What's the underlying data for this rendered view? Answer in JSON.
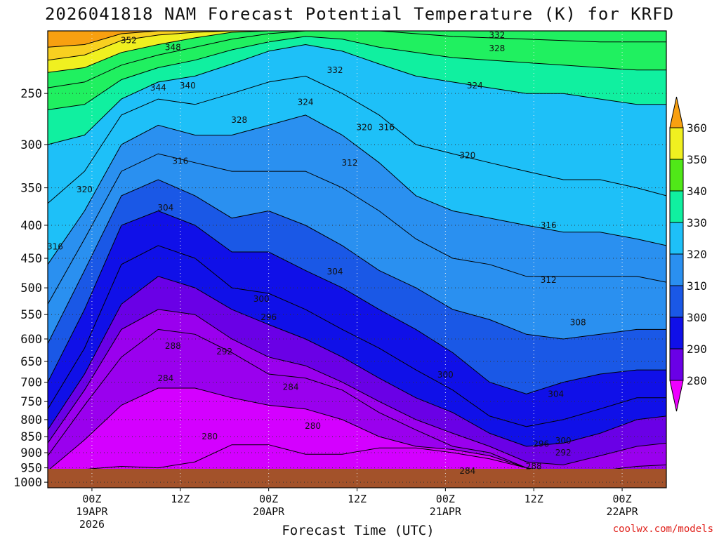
{
  "title": "2026041818 NAM Forecast Potential Temperature (K) for KRFD",
  "xlabel": "Forecast Time (UTC)",
  "credit": "coolwx.com/models",
  "chart_data": {
    "type": "contour",
    "variable": "Potential Temperature (K)",
    "y_axis": {
      "quantity": "pressure (hPa)",
      "scale": "log, inverted",
      "range": [
        200,
        1020
      ],
      "ticks": [
        250,
        300,
        350,
        400,
        450,
        500,
        550,
        600,
        650,
        700,
        750,
        800,
        850,
        900,
        950,
        1000
      ]
    },
    "x_axis": {
      "range_hours": [
        -6,
        78
      ],
      "ticks": [
        {
          "hour": 0,
          "lines": [
            "00Z",
            "19APR",
            "2026"
          ]
        },
        {
          "hour": 12,
          "lines": [
            "12Z"
          ]
        },
        {
          "hour": 24,
          "lines": [
            "00Z",
            "20APR"
          ]
        },
        {
          "hour": 36,
          "lines": [
            "12Z"
          ]
        },
        {
          "hour": 48,
          "lines": [
            "00Z",
            "21APR"
          ]
        },
        {
          "hour": 60,
          "lines": [
            "12Z"
          ]
        },
        {
          "hour": 72,
          "lines": [
            "00Z",
            "22APR"
          ]
        }
      ]
    },
    "grid": "dotted",
    "colorbar": {
      "levels": [
        280,
        290,
        300,
        310,
        320,
        330,
        340,
        350,
        360
      ],
      "colors": [
        "#d400ff",
        "#9a00ee",
        "#6a00e6",
        "#1010e8",
        "#1a58e6",
        "#2a90f0",
        "#1ec0f8",
        "#10f0a0",
        "#20f060",
        "#50e818",
        "#f0f020",
        "#f8d020",
        "#f8a010"
      ]
    },
    "isentropes": [
      {
        "theta": 280,
        "p": [
          1000,
          955,
          945,
          950,
          930,
          875,
          875,
          905,
          905,
          885,
          885,
          900,
          920,
          950,
          985,
          1000,
          1000,
          1000
        ]
      },
      {
        "theta": 284,
        "p": [
          960,
          860,
          760,
          715,
          715,
          740,
          760,
          770,
          800,
          850,
          880,
          890,
          910,
          950,
          975,
          990,
          985,
          975
        ]
      },
      {
        "theta": 288,
        "p": [
          910,
          760,
          640,
          580,
          590,
          630,
          680,
          690,
          720,
          780,
          830,
          880,
          900,
          950,
          975,
          960,
          945,
          940
        ]
      },
      {
        "theta": 292,
        "p": [
          870,
          720,
          580,
          540,
          550,
          600,
          640,
          660,
          700,
          750,
          800,
          840,
          880,
          930,
          940,
          910,
          880,
          870
        ]
      },
      {
        "theta": 296,
        "p": [
          830,
          680,
          530,
          480,
          500,
          540,
          570,
          600,
          640,
          690,
          740,
          780,
          840,
          880,
          870,
          840,
          800,
          790
        ]
      },
      {
        "theta": 300,
        "p": [
          770,
          620,
          460,
          430,
          450,
          500,
          510,
          540,
          580,
          620,
          670,
          720,
          790,
          820,
          800,
          770,
          740,
          740
        ]
      },
      {
        "theta": 304,
        "p": [
          700,
          540,
          400,
          380,
          400,
          440,
          440,
          470,
          500,
          540,
          580,
          630,
          700,
          730,
          700,
          680,
          670,
          670
        ]
      },
      {
        "theta": 308,
        "p": [
          610,
          470,
          360,
          340,
          360,
          390,
          380,
          400,
          430,
          470,
          500,
          540,
          560,
          590,
          600,
          590,
          580,
          580
        ]
      },
      {
        "theta": 312,
        "p": [
          530,
          420,
          330,
          310,
          320,
          330,
          330,
          330,
          350,
          380,
          420,
          450,
          460,
          480,
          480,
          480,
          480,
          490
        ]
      },
      {
        "theta": 316,
        "p": [
          460,
          380,
          300,
          280,
          290,
          290,
          280,
          270,
          290,
          320,
          360,
          380,
          390,
          400,
          410,
          410,
          420,
          430
        ]
      },
      {
        "theta": 320,
        "p": [
          370,
          330,
          270,
          255,
          260,
          250,
          240,
          235,
          250,
          270,
          300,
          310,
          320,
          330,
          340,
          340,
          350,
          360
        ]
      },
      {
        "theta": 324,
        "p": [
          300,
          290,
          255,
          240,
          235,
          225,
          215,
          210,
          215,
          225,
          235,
          240,
          245,
          250,
          250,
          255,
          260,
          260
        ]
      },
      {
        "theta": 328,
        "p": [
          265,
          260,
          238,
          228,
          222,
          214,
          208,
          204,
          206,
          212,
          216,
          220,
          222,
          224,
          226,
          228,
          230,
          230
        ]
      },
      {
        "theta": 332,
        "p": [
          245,
          240,
          226,
          218,
          212,
          206,
          202,
          200,
          200,
          200,
          202,
          204,
          205,
          206,
          207,
          208,
          208,
          208
        ]
      },
      {
        "theta": 340,
        "p": [
          232,
          228,
          216,
          210,
          205,
          201,
          200,
          200,
          200,
          200,
          200,
          200,
          200,
          200,
          200,
          200,
          200,
          200
        ]
      },
      {
        "theta": 348,
        "p": [
          222,
          218,
          207,
          203,
          201,
          200,
          200,
          200,
          200,
          200,
          200,
          200,
          200,
          200,
          200,
          200,
          200,
          200
        ]
      },
      {
        "theta": 352,
        "p": [
          212,
          210,
          202,
          200,
          200,
          200,
          200,
          200,
          200,
          200,
          200,
          200,
          200,
          200,
          200,
          200,
          200,
          200
        ]
      }
    ],
    "isentrope_hours": [
      -6,
      -1,
      4,
      9,
      14,
      19,
      24,
      29,
      34,
      39,
      44,
      49,
      54,
      59,
      64,
      69,
      74,
      78
    ],
    "contour_labels": [
      {
        "text": "352",
        "hour": 5,
        "p": 207
      },
      {
        "text": "348",
        "hour": 11,
        "p": 212
      },
      {
        "text": "344",
        "hour": 9,
        "p": 245
      },
      {
        "text": "340",
        "hour": 13,
        "p": 243
      },
      {
        "text": "332",
        "hour": 33,
        "p": 230
      },
      {
        "text": "332",
        "hour": 55,
        "p": 203
      },
      {
        "text": "328",
        "hour": 55,
        "p": 213
      },
      {
        "text": "328",
        "hour": 20,
        "p": 275
      },
      {
        "text": "324",
        "hour": 29,
        "p": 258
      },
      {
        "text": "324",
        "hour": 52,
        "p": 243
      },
      {
        "text": "320",
        "hour": 37,
        "p": 282
      },
      {
        "text": "316",
        "hour": 40,
        "p": 282
      },
      {
        "text": "316",
        "hour": 12,
        "p": 318
      },
      {
        "text": "312",
        "hour": 35,
        "p": 320
      },
      {
        "text": "320",
        "hour": 51,
        "p": 312
      },
      {
        "text": "320",
        "hour": -1,
        "p": 352
      },
      {
        "text": "304",
        "hour": 10,
        "p": 376
      },
      {
        "text": "316",
        "hour": -5,
        "p": 432
      },
      {
        "text": "316",
        "hour": 62,
        "p": 400
      },
      {
        "text": "304",
        "hour": 33,
        "p": 472
      },
      {
        "text": "312",
        "hour": 62,
        "p": 486
      },
      {
        "text": "300",
        "hour": 23,
        "p": 520
      },
      {
        "text": "296",
        "hour": 24,
        "p": 555
      },
      {
        "text": "308",
        "hour": 66,
        "p": 566
      },
      {
        "text": "288",
        "hour": 11,
        "p": 615
      },
      {
        "text": "292",
        "hour": 18,
        "p": 628
      },
      {
        "text": "284",
        "hour": 10,
        "p": 690
      },
      {
        "text": "300",
        "hour": 48,
        "p": 682
      },
      {
        "text": "284",
        "hour": 27,
        "p": 712
      },
      {
        "text": "304",
        "hour": 63,
        "p": 730
      },
      {
        "text": "280",
        "hour": 30,
        "p": 818
      },
      {
        "text": "280",
        "hour": 16,
        "p": 850
      },
      {
        "text": "300",
        "hour": 64,
        "p": 862
      },
      {
        "text": "296",
        "hour": 61,
        "p": 872
      },
      {
        "text": "292",
        "hour": 64,
        "p": 900
      },
      {
        "text": "288",
        "hour": 60,
        "p": 945
      },
      {
        "text": "284",
        "hour": 51,
        "p": 960
      }
    ]
  }
}
